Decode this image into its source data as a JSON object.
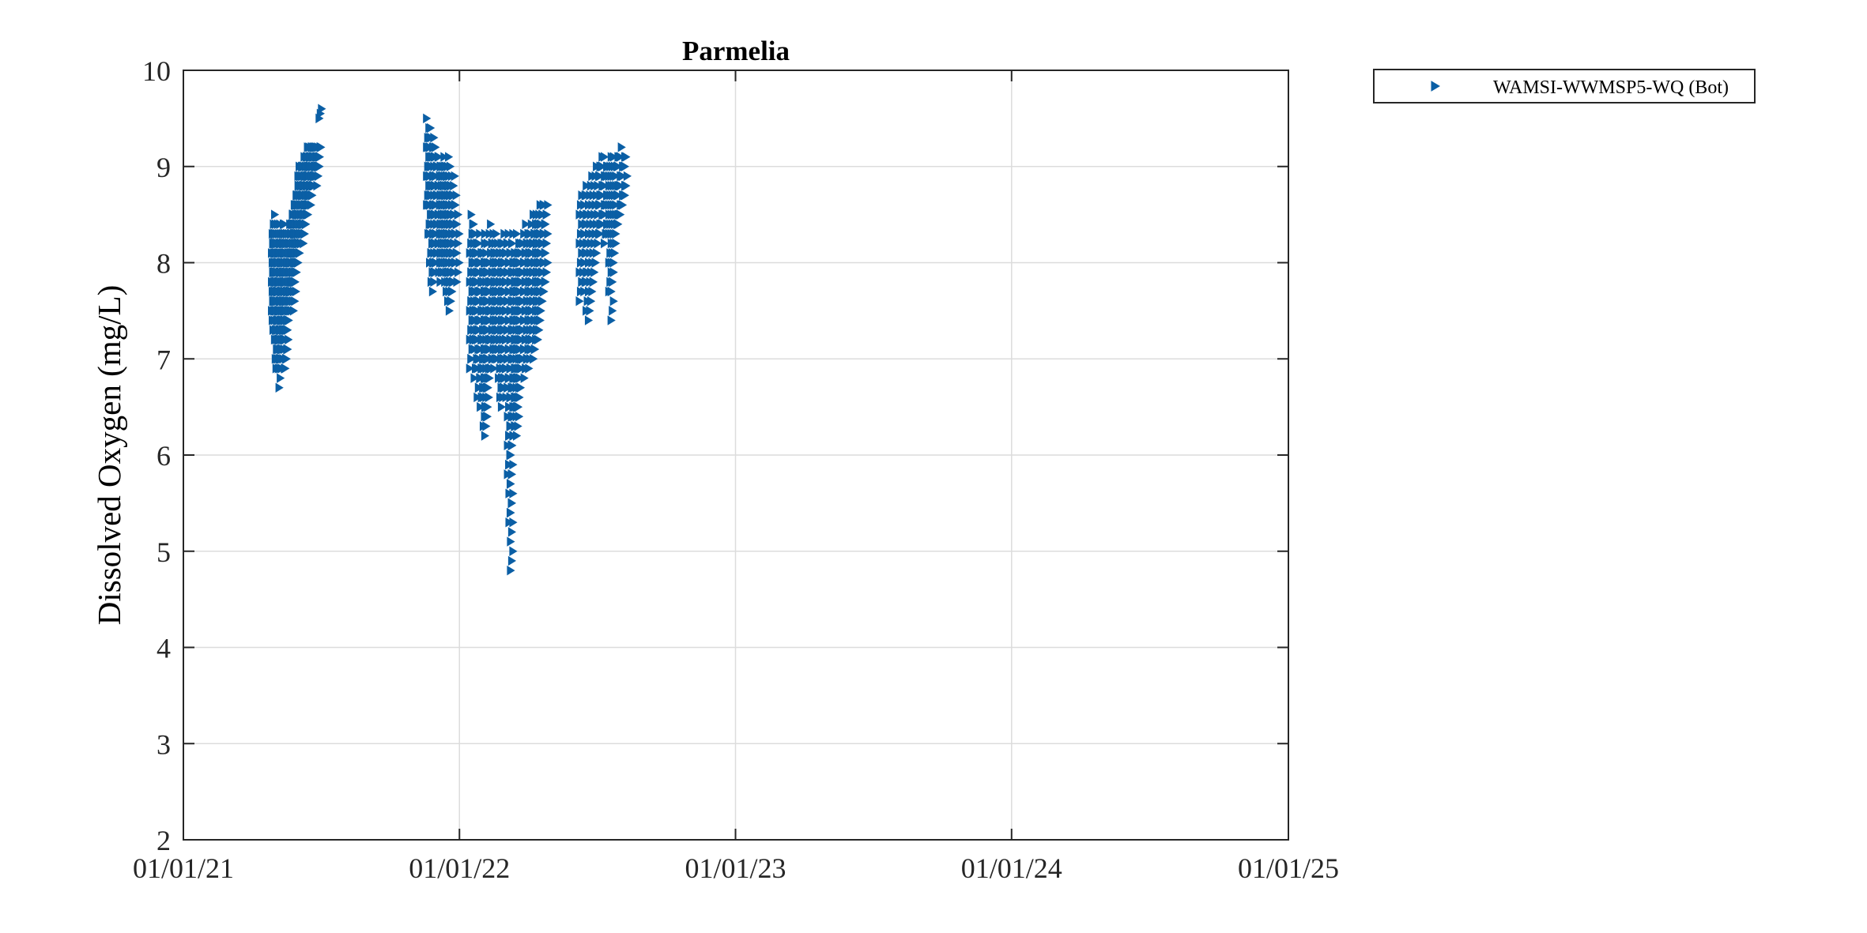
{
  "chart_data": {
    "type": "scatter",
    "title": "Parmelia",
    "xlabel": "",
    "ylabel": "Dissolved Oxygen (mg/L)",
    "xlim": [
      "01/01/21",
      "01/01/25"
    ],
    "ylim": [
      2,
      10
    ],
    "x_ticks": [
      "01/01/21",
      "01/01/22",
      "01/01/23",
      "01/01/24",
      "01/01/25"
    ],
    "y_ticks": [
      "2",
      "3",
      "4",
      "5",
      "6",
      "7",
      "8",
      "9",
      "10"
    ],
    "grid": true,
    "legend_position": "outside-top-right",
    "marker": "right-pointing triangle",
    "series": [
      {
        "name": "WAMSI-WWMSP5-WQ (Bot)",
        "color": "#0b5fa5",
        "x": [
          "2021-04-29",
          "2021-04-30",
          "2021-05-01",
          "2021-05-02",
          "2021-05-03",
          "2021-05-04",
          "2021-05-05",
          "2021-05-06",
          "2021-05-07",
          "2021-05-08",
          "2021-05-09",
          "2021-05-10",
          "2021-05-11",
          "2021-05-12",
          "2021-05-13",
          "2021-05-14",
          "2021-05-15",
          "2021-05-16",
          "2021-05-17",
          "2021-05-18",
          "2021-05-19",
          "2021-05-20",
          "2021-05-21",
          "2021-05-22",
          "2021-05-23",
          "2021-05-24",
          "2021-05-25",
          "2021-05-26",
          "2021-05-27",
          "2021-05-28",
          "2021-05-29",
          "2021-05-30",
          "2021-05-31",
          "2021-06-01",
          "2021-06-02",
          "2021-06-03",
          "2021-06-04",
          "2021-06-05",
          "2021-06-06",
          "2021-06-07",
          "2021-06-08",
          "2021-06-09",
          "2021-06-10",
          "2021-06-11",
          "2021-06-12",
          "2021-06-13",
          "2021-06-14",
          "2021-06-15",
          "2021-06-16",
          "2021-06-17",
          "2021-06-18",
          "2021-06-19",
          "2021-06-20",
          "2021-06-21",
          "2021-06-22",
          "2021-06-23",
          "2021-06-24",
          "2021-06-25",
          "2021-06-26",
          "2021-06-27",
          "2021-06-28",
          "2021-06-29",
          "2021-06-30",
          "2021-07-01",
          "2021-11-20",
          "2021-11-22",
          "2021-11-24",
          "2021-11-26",
          "2021-11-28",
          "2021-11-30",
          "2021-12-02",
          "2021-12-04",
          "2021-12-06",
          "2021-12-08",
          "2021-12-10",
          "2021-12-12",
          "2021-12-14",
          "2021-12-16",
          "2021-12-18",
          "2021-12-20",
          "2021-12-22",
          "2021-12-24",
          "2021-12-26",
          "2021-12-28",
          "2021-12-30",
          "2022-01-16",
          "2022-01-18",
          "2022-01-20",
          "2022-01-22",
          "2022-01-24",
          "2022-01-26",
          "2022-01-28",
          "2022-01-30",
          "2022-02-01",
          "2022-02-03",
          "2022-02-05",
          "2022-02-07",
          "2022-02-09",
          "2022-02-11",
          "2022-02-13",
          "2022-02-15",
          "2022-02-17",
          "2022-02-19",
          "2022-02-21",
          "2022-02-23",
          "2022-02-25",
          "2022-02-27",
          "2022-03-01",
          "2022-03-03",
          "2022-03-05",
          "2022-03-07",
          "2022-03-09",
          "2022-03-11",
          "2022-03-13",
          "2022-03-15",
          "2022-03-17",
          "2022-03-19",
          "2022-03-21",
          "2022-03-23",
          "2022-03-25",
          "2022-03-27",
          "2022-03-29",
          "2022-03-31",
          "2022-04-02",
          "2022-04-04",
          "2022-04-06",
          "2022-04-08",
          "2022-04-10",
          "2022-04-12",
          "2022-04-14",
          "2022-04-16",
          "2022-04-18",
          "2022-04-20",
          "2022-04-22",
          "2022-04-24",
          "2022-04-26",
          "2022-06-10",
          "2022-06-13",
          "2022-06-16",
          "2022-06-19",
          "2022-06-22",
          "2022-06-25",
          "2022-06-28",
          "2022-07-01",
          "2022-07-04",
          "2022-07-07",
          "2022-07-10",
          "2022-07-13",
          "2022-07-16",
          "2022-07-19",
          "2022-07-22",
          "2022-07-25",
          "2022-07-28",
          "2022-07-31",
          "2022-08-03",
          "2022-08-06",
          "2022-08-09"
        ],
        "y_low": [
          7.5,
          7.4,
          7.3,
          7.6,
          7.2,
          7.0,
          6.9,
          7.0,
          7.1,
          6.9,
          6.7,
          6.9,
          7.0,
          7.2,
          7.1,
          7.0,
          7.3,
          6.9,
          6.9,
          7.0,
          7.4,
          7.3,
          7.5,
          7.6,
          7.7,
          7.6,
          7.5,
          7.8,
          7.6,
          7.5,
          7.8,
          8.0,
          8.0,
          7.9,
          8.1,
          8.0,
          8.2,
          8.1,
          8.3,
          8.2,
          8.3,
          8.4,
          8.2,
          8.3,
          8.5,
          8.4,
          8.5,
          8.6,
          8.5,
          8.6,
          8.7,
          8.8,
          8.6,
          8.7,
          8.8,
          8.9,
          8.8,
          8.9,
          9.0,
          8.9,
          8.8,
          9.0,
          9.0,
          9.5,
          8.6,
          8.3,
          8.0,
          7.8,
          7.7,
          7.9,
          8.0,
          8.1,
          7.9,
          7.8,
          8.0,
          7.9,
          7.8,
          7.7,
          7.6,
          7.5,
          7.6,
          7.8,
          7.9,
          8.0,
          7.8,
          6.9,
          7.0,
          7.2,
          6.8,
          6.9,
          6.6,
          6.7,
          6.5,
          6.6,
          6.3,
          6.2,
          6.4,
          6.7,
          6.8,
          6.9,
          7.0,
          6.9,
          7.1,
          7.0,
          6.8,
          6.6,
          6.5,
          6.7,
          6.8,
          6.6,
          5.8,
          5.3,
          4.8,
          6.1,
          6.4,
          6.3,
          6.2,
          6.5,
          6.8,
          6.9,
          7.0,
          6.8,
          6.9,
          7.0,
          6.9,
          7.1,
          7.2,
          7.0,
          7.1,
          7.3,
          7.2,
          7.4,
          7.5,
          7.6,
          7.7,
          7.8,
          7.6,
          7.8,
          7.7,
          7.5,
          7.4,
          7.6,
          7.8,
          8.0,
          8.2,
          8.3,
          8.4,
          8.2,
          8.3,
          7.7,
          7.4,
          8.0,
          8.3,
          8.4,
          8.5,
          8.6,
          8.7
        ],
        "y_high": [
          8.3,
          8.5,
          8.4,
          8.3,
          8.2,
          8.4,
          8.3,
          8.2,
          8.0,
          8.2,
          8.3,
          8.4,
          8.2,
          8.3,
          8.4,
          8.2,
          8.3,
          8.4,
          8.2,
          8.1,
          8.3,
          8.4,
          8.3,
          8.2,
          8.1,
          8.4,
          8.5,
          8.6,
          8.5,
          8.4,
          8.6,
          8.7,
          8.8,
          8.7,
          8.9,
          9.0,
          8.9,
          8.8,
          9.0,
          9.0,
          9.1,
          9.0,
          9.0,
          9.1,
          9.0,
          9.1,
          9.2,
          9.1,
          9.2,
          9.1,
          9.2,
          9.2,
          9.1,
          9.2,
          9.1,
          9.2,
          9.2,
          9.1,
          9.2,
          9.2,
          9.1,
          9.2,
          9.2,
          9.6,
          9.5,
          9.4,
          9.3,
          9.2,
          9.3,
          9.2,
          9.1,
          9.0,
          9.1,
          9.0,
          9.1,
          9.0,
          9.0,
          9.1,
          9.0,
          8.9,
          8.8,
          8.9,
          8.7,
          8.6,
          8.5,
          8.3,
          8.5,
          8.4,
          8.3,
          8.2,
          8.3,
          8.1,
          8.0,
          8.1,
          8.2,
          8.3,
          8.0,
          7.9,
          8.4,
          8.3,
          8.2,
          8.3,
          8.2,
          8.1,
          8.0,
          8.2,
          8.1,
          8.3,
          8.2,
          8.3,
          8.2,
          8.1,
          8.3,
          8.2,
          8.0,
          8.1,
          8.3,
          8.2,
          8.0,
          8.1,
          8.3,
          8.2,
          8.4,
          8.3,
          8.2,
          8.4,
          8.3,
          8.5,
          8.4,
          8.5,
          8.6,
          8.4,
          8.6,
          8.5,
          8.6,
          8.6,
          8.7,
          8.6,
          8.8,
          8.7,
          8.8,
          8.9,
          8.8,
          9.0,
          9.0,
          9.1,
          9.0,
          9.1,
          9.0,
          9.1,
          9.1,
          9.0,
          9.1,
          9.1,
          9.2,
          9.1,
          9.1
        ]
      }
    ]
  }
}
